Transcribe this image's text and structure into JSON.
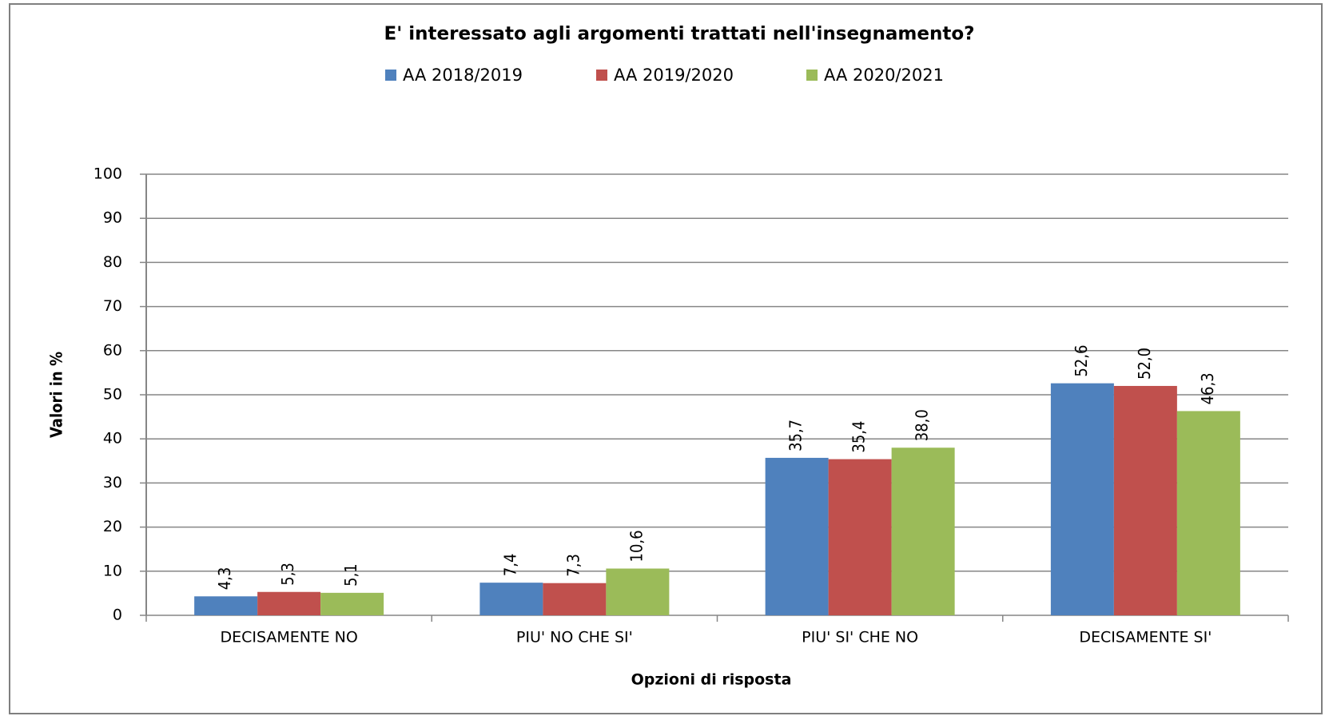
{
  "chart_data": {
    "type": "bar",
    "title": "E' interessato agli argomenti trattati nell'insegnamento?",
    "x_label": "Opzioni di risposta",
    "y_label": "Valori in %",
    "categories": [
      "DECISAMENTE NO",
      "PIU' NO CHE SI'",
      "PIU' SI' CHE NO",
      "DECISAMENTE SI'"
    ],
    "series": [
      {
        "name": "AA 2018/2019",
        "color": "#4f81bd",
        "values": [
          4.3,
          7.4,
          35.7,
          52.6
        ],
        "value_labels": [
          "4,3",
          "7,4",
          "35,7",
          "52,6"
        ]
      },
      {
        "name": "AA 2019/2020",
        "color": "#c0504d",
        "values": [
          5.3,
          7.3,
          35.4,
          52.0
        ],
        "value_labels": [
          "5,3",
          "7,3",
          "35,4",
          "52,0"
        ]
      },
      {
        "name": "AA 2020/2021",
        "color": "#9bbb59",
        "values": [
          5.1,
          10.6,
          38.0,
          46.3
        ],
        "value_labels": [
          "5,1",
          "10,6",
          "38,0",
          "46,3"
        ]
      }
    ],
    "ylim": [
      0,
      100
    ],
    "yticks": [
      0,
      10,
      20,
      30,
      40,
      50,
      60,
      70,
      80,
      90,
      100
    ],
    "grid": true,
    "legend": "top"
  }
}
